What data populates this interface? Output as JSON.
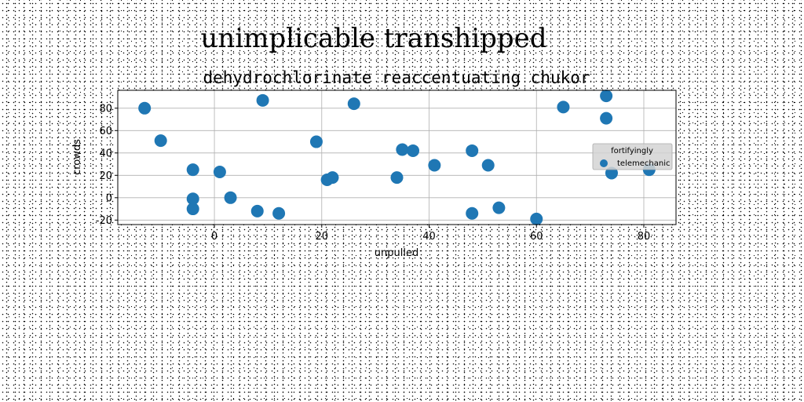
{
  "chart_data": {
    "type": "scatter",
    "suptitle": "unimplicable transhipped",
    "title": "dehydrochlorinate reaccentuating chukor",
    "xlabel": "unpulled",
    "ylabel": "crowds",
    "xlim": [
      -18,
      86
    ],
    "ylim": [
      -24,
      96
    ],
    "xticks": [
      0,
      20,
      40,
      60,
      80
    ],
    "yticks": [
      -20,
      0,
      20,
      40,
      60,
      80
    ],
    "grid": true,
    "legend": {
      "title": "fortifyingly",
      "placement": "center-right"
    },
    "colors": {
      "series": "#1f77b4",
      "grid": "#b0b0b0",
      "legend_bg": "#d3d3d3"
    },
    "series": [
      {
        "name": "telemechanic",
        "points": [
          [
            -13,
            80
          ],
          [
            -10,
            51
          ],
          [
            -4,
            25
          ],
          [
            -4,
            -1
          ],
          [
            -4,
            -10
          ],
          [
            1,
            23
          ],
          [
            3,
            0
          ],
          [
            8,
            -12
          ],
          [
            9,
            87
          ],
          [
            12,
            -14
          ],
          [
            19,
            50
          ],
          [
            21,
            16
          ],
          [
            22,
            18
          ],
          [
            26,
            84
          ],
          [
            34,
            18
          ],
          [
            35,
            43
          ],
          [
            37,
            42
          ],
          [
            41,
            29
          ],
          [
            48,
            42
          ],
          [
            48,
            -14
          ],
          [
            51,
            29
          ],
          [
            53,
            -9
          ],
          [
            60,
            -19
          ],
          [
            65,
            81
          ],
          [
            73,
            91
          ],
          [
            73,
            71
          ],
          [
            74,
            22
          ],
          [
            81,
            25
          ]
        ]
      }
    ]
  }
}
